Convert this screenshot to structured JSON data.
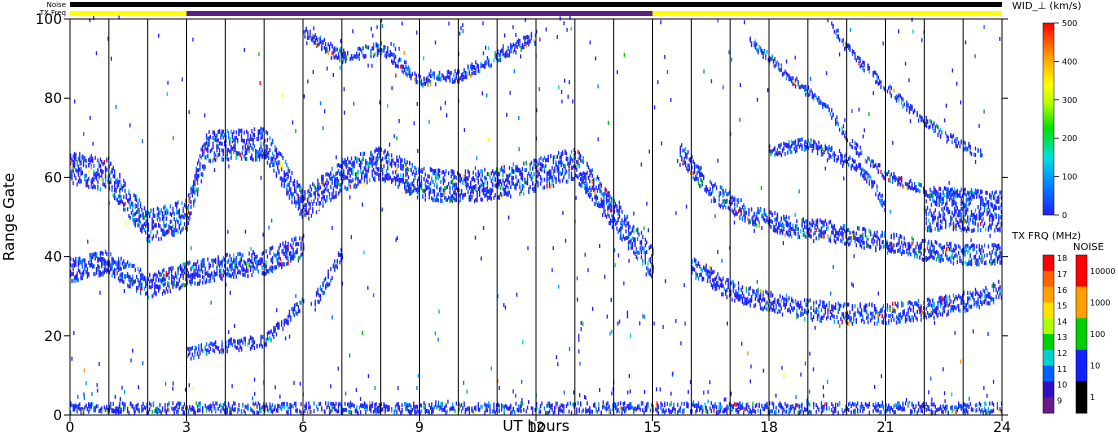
{
  "chart_data": {
    "type": "heatmap",
    "description_kind": "SuperDARN range-time plot of spectral width",
    "xlabel": "UT hours",
    "ylabel": "Range Gate",
    "xlim": [
      0,
      24
    ],
    "ylim": [
      0,
      100
    ],
    "x_ticks": [
      0,
      3,
      6,
      9,
      12,
      15,
      18,
      21,
      24
    ],
    "x_tick_labels": [
      "0",
      "3",
      "6",
      "9",
      "12",
      "15",
      "18",
      "21",
      "24"
    ],
    "y_ticks": [
      0,
      20,
      40,
      60,
      80,
      100
    ],
    "y_tick_labels": [
      "0",
      "20",
      "40",
      "60",
      "80",
      "100"
    ],
    "vertical_lines_hours": [
      1,
      2,
      3,
      4,
      5,
      6,
      7,
      8,
      9,
      10,
      11,
      12,
      13,
      14,
      15,
      16,
      17,
      18,
      19,
      20,
      21,
      22,
      23
    ],
    "status_bars": {
      "noise_label": "Noise",
      "txfreq_label": "TX Freq",
      "txfreq_segments": [
        {
          "start": 0,
          "end": 3,
          "color": "#ffff00"
        },
        {
          "start": 3,
          "end": 15,
          "color": "#5a2080"
        },
        {
          "start": 15,
          "end": 24,
          "color": "#ffff00"
        }
      ]
    },
    "bands": [
      {
        "name": "upper",
        "points": [
          [
            0,
            62
          ],
          [
            1,
            60
          ],
          [
            2,
            47
          ],
          [
            3,
            50
          ],
          [
            3.5,
            67
          ],
          [
            5,
            68
          ],
          [
            6,
            52
          ],
          [
            7,
            60
          ],
          [
            8,
            63
          ],
          [
            9,
            58
          ],
          [
            10,
            57
          ],
          [
            11,
            58
          ],
          [
            12,
            60
          ],
          [
            13,
            63
          ],
          [
            14,
            50
          ],
          [
            15,
            38
          ]
        ],
        "width": 4,
        "gaps": []
      },
      {
        "name": "lower",
        "points": [
          [
            0,
            36
          ],
          [
            1,
            38
          ],
          [
            2,
            32
          ],
          [
            3,
            35
          ],
          [
            4,
            37
          ],
          [
            5,
            38
          ],
          [
            6,
            42
          ]
        ],
        "width": 3,
        "gaps": []
      },
      {
        "name": "low-morning",
        "points": [
          [
            3,
            15
          ],
          [
            4,
            17
          ],
          [
            5,
            18
          ],
          [
            6,
            28
          ]
        ],
        "width": 1.5,
        "gaps": []
      },
      {
        "name": "mid-scatter",
        "points": [
          [
            6.3,
            28
          ],
          [
            6.7,
            35
          ],
          [
            7,
            40
          ]
        ],
        "width": 2,
        "gaps": []
      },
      {
        "name": "evening-upper",
        "points": [
          [
            15.7,
            66
          ],
          [
            16.5,
            56
          ],
          [
            17.5,
            50
          ],
          [
            18.5,
            47
          ],
          [
            19.5,
            46
          ],
          [
            20,
            45
          ],
          [
            21,
            43
          ],
          [
            22,
            41
          ],
          [
            23,
            40
          ],
          [
            24,
            40
          ]
        ],
        "width": 2.5,
        "gaps": []
      },
      {
        "name": "evening-lower",
        "points": [
          [
            16,
            37
          ],
          [
            17,
            31
          ],
          [
            18,
            28
          ],
          [
            19,
            26
          ],
          [
            20,
            25
          ],
          [
            21,
            25
          ],
          [
            22,
            26
          ],
          [
            23,
            28
          ],
          [
            24,
            31
          ]
        ],
        "width": 2.5,
        "gaps": []
      },
      {
        "name": "evening-block",
        "points": [
          [
            22,
            51
          ],
          [
            24,
            51
          ]
        ],
        "width": 5,
        "gaps": []
      },
      {
        "name": "post-midnight-arc",
        "points": [
          [
            18,
            66
          ],
          [
            19,
            68
          ],
          [
            20,
            64
          ],
          [
            20.5,
            60
          ],
          [
            21,
            52
          ]
        ],
        "width": 1.5,
        "gaps": []
      },
      {
        "name": "arc-1",
        "points": [
          [
            17.5,
            94
          ],
          [
            18.5,
            85
          ],
          [
            19.5,
            77
          ],
          [
            20.2,
            67
          ],
          [
            21,
            60
          ],
          [
            22,
            56
          ],
          [
            23.5,
            55
          ]
        ],
        "width": 1.2,
        "gaps": []
      },
      {
        "name": "arc-2",
        "points": [
          [
            19.5,
            100
          ],
          [
            20,
            92
          ],
          [
            20.8,
            84
          ],
          [
            21.7,
            76
          ],
          [
            22.5,
            70
          ],
          [
            23.5,
            65
          ]
        ],
        "width": 1.2,
        "gaps": []
      },
      {
        "name": "far-range",
        "points": [
          [
            6,
            96
          ],
          [
            7,
            90
          ],
          [
            8,
            92
          ],
          [
            9,
            84
          ],
          [
            10,
            85
          ],
          [
            11,
            90
          ],
          [
            12,
            95
          ]
        ],
        "width": 1.5,
        "gaps": []
      },
      {
        "name": "near-ground",
        "points": [
          [
            0,
            1
          ],
          [
            24,
            1
          ]
        ],
        "width": 1.5,
        "gaps": []
      }
    ],
    "colorbars": [
      {
        "title": "WID_⊥ (km/s)",
        "scale": "linear",
        "range": [
          0,
          500
        ],
        "tick_labels": [
          "500",
          "400",
          "300",
          "200",
          "100",
          "0"
        ]
      },
      {
        "title": "TX FRQ (MHz)",
        "scale": "discrete",
        "tick_labels": [
          "18",
          "17",
          "16",
          "15",
          "14",
          "13",
          "12",
          "11",
          "10",
          "9"
        ]
      },
      {
        "title": "NOISE",
        "scale": "log",
        "tick_labels": [
          "10000",
          "1000",
          "100",
          "10",
          "1"
        ]
      }
    ]
  }
}
